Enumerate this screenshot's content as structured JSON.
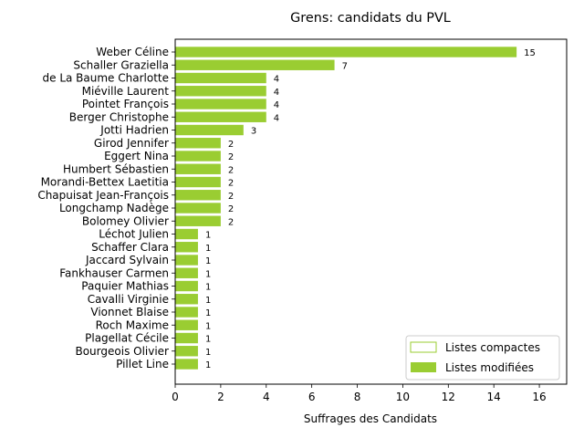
{
  "chart_data": {
    "type": "bar",
    "orientation": "horizontal",
    "title": "Grens: candidats du PVL",
    "xlabel": "Suffrages des Candidats",
    "ylabel": "",
    "xlim": [
      0,
      17.2
    ],
    "xticks": [
      0,
      2,
      4,
      6,
      8,
      10,
      12,
      14,
      16
    ],
    "grid": false,
    "legend_position": "bottom-right",
    "colors": {
      "bar": "#9acd32",
      "compact_edge": "#9acd32"
    },
    "categories": [
      "Weber Céline",
      "Schaller Graziella",
      "de La Baume Charlotte",
      "Miéville Laurent",
      "Pointet François",
      "Berger Christophe",
      "Jotti Hadrien",
      "Girod Jennifer",
      "Eggert Nina",
      "Humbert Sébastien",
      "Morandi-Bettex Laetitia",
      "Chapuisat Jean-François",
      "Longchamp Nadège",
      "Bolomey Olivier",
      "Léchot Julien",
      "Schaffer Clara",
      "Jaccard Sylvain",
      "Fankhauser Carmen",
      "Paquier Mathias",
      "Cavalli Virginie",
      "Vionnet Blaise",
      "Roch Maxime",
      "Plagellat Cécile",
      "Bourgeois Olivier",
      "Pillet Line"
    ],
    "series": [
      {
        "name": "Listes compactes",
        "values": [
          0,
          0,
          0,
          0,
          0,
          0,
          0,
          0,
          0,
          0,
          0,
          0,
          0,
          0,
          0,
          0,
          0,
          0,
          0,
          0,
          0,
          0,
          0,
          0,
          0
        ]
      },
      {
        "name": "Listes modifiées",
        "values": [
          15,
          7,
          4,
          4,
          4,
          4,
          3,
          2,
          2,
          2,
          2,
          2,
          2,
          2,
          1,
          1,
          1,
          1,
          1,
          1,
          1,
          1,
          1,
          1,
          1
        ]
      }
    ],
    "totals": [
      15,
      7,
      4,
      4,
      4,
      4,
      3,
      2,
      2,
      2,
      2,
      2,
      2,
      2,
      1,
      1,
      1,
      1,
      1,
      1,
      1,
      1,
      1,
      1,
      1
    ]
  }
}
